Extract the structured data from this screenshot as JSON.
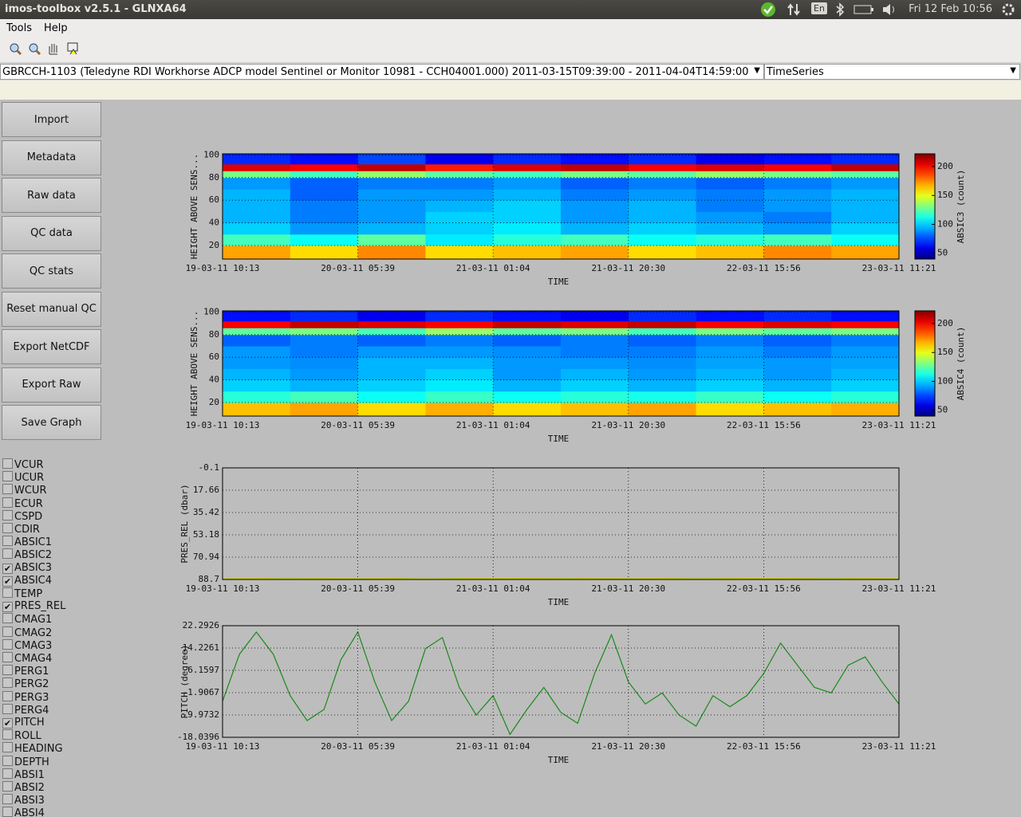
{
  "window": {
    "title": "imos-toolbox v2.5.1 - GLNXA64",
    "keyboard": "En",
    "clock": "Fri 12 Feb 10:56"
  },
  "menu": [
    "Tools",
    "Help"
  ],
  "dataset_select": "GBRCCH-1103 (Teledyne RDI Workhorse ADCP model Sentinel or Monitor 10981 - CCH04001.000) 2011-03-15T09:39:00 - 2011-04-04T14:59:00",
  "mode_select": "TimeSeries",
  "buttons": [
    "Import",
    "Metadata",
    "Raw data",
    "QC data",
    "QC stats",
    "Reset manual QC",
    "Export NetCDF",
    "Export Raw",
    "Save Graph"
  ],
  "variables": [
    {
      "name": "VCUR",
      "checked": false
    },
    {
      "name": "UCUR",
      "checked": false
    },
    {
      "name": "WCUR",
      "checked": false
    },
    {
      "name": "ECUR",
      "checked": false
    },
    {
      "name": "CSPD",
      "checked": false
    },
    {
      "name": "CDIR",
      "checked": false
    },
    {
      "name": "ABSIC1",
      "checked": false
    },
    {
      "name": "ABSIC2",
      "checked": false
    },
    {
      "name": "ABSIC3",
      "checked": true
    },
    {
      "name": "ABSIC4",
      "checked": true
    },
    {
      "name": "TEMP",
      "checked": false
    },
    {
      "name": "PRES_REL",
      "checked": true
    },
    {
      "name": "CMAG1",
      "checked": false
    },
    {
      "name": "CMAG2",
      "checked": false
    },
    {
      "name": "CMAG3",
      "checked": false
    },
    {
      "name": "CMAG4",
      "checked": false
    },
    {
      "name": "PERG1",
      "checked": false
    },
    {
      "name": "PERG2",
      "checked": false
    },
    {
      "name": "PERG3",
      "checked": false
    },
    {
      "name": "PERG4",
      "checked": false
    },
    {
      "name": "PITCH",
      "checked": true
    },
    {
      "name": "ROLL",
      "checked": false
    },
    {
      "name": "HEADING",
      "checked": false
    },
    {
      "name": "DEPTH",
      "checked": false
    },
    {
      "name": "ABSI1",
      "checked": false
    },
    {
      "name": "ABSI2",
      "checked": false
    },
    {
      "name": "ABSI3",
      "checked": false
    },
    {
      "name": "ABSI4",
      "checked": false
    }
  ],
  "chart_data": [
    {
      "type": "heatmap",
      "ylabel": "HEIGHT ABOVE SENS...",
      "xlabel": "TIME",
      "colorbar_label": "ABSIC3 (count)",
      "xlim": [
        0,
        5
      ],
      "xticks": [
        {
          "value": 0,
          "label": "19-03-11 10:13"
        },
        {
          "value": 1,
          "label": "20-03-11 05:39"
        },
        {
          "value": 2,
          "label": "21-03-11 01:04"
        },
        {
          "value": 3,
          "label": "21-03-11 20:30"
        },
        {
          "value": 4,
          "label": "22-03-11 15:56"
        },
        {
          "value": 5,
          "label": "23-03-11 11:21"
        }
      ],
      "ylim": [
        8,
        101
      ],
      "yticks": [
        20,
        40,
        60,
        80,
        100
      ],
      "grid": true,
      "clim": [
        40,
        222
      ],
      "cticks": [
        50,
        100,
        150,
        200
      ],
      "x_edges": [
        0,
        0.5,
        1,
        1.5,
        2,
        2.5,
        3,
        3.5,
        4,
        4.5,
        5
      ],
      "y_edges": [
        8,
        20,
        30,
        40,
        50,
        60,
        70,
        80,
        86,
        92,
        101
      ],
      "z": [
        [
          170,
          160,
          175,
          160,
          165,
          170,
          160,
          165,
          175,
          170
        ],
        [
          120,
          110,
          125,
          105,
          115,
          120,
          110,
          115,
          120,
          110
        ],
        [
          100,
          90,
          95,
          100,
          105,
          95,
          100,
          95,
          90,
          100
        ],
        [
          95,
          85,
          90,
          100,
          100,
          90,
          95,
          90,
          85,
          95
        ],
        [
          95,
          85,
          90,
          95,
          100,
          90,
          95,
          85,
          90,
          95
        ],
        [
          95,
          80,
          90,
          90,
          95,
          85,
          90,
          85,
          90,
          95
        ],
        [
          90,
          80,
          85,
          85,
          90,
          80,
          85,
          80,
          85,
          90
        ],
        [
          130,
          120,
          135,
          125,
          120,
          130,
          125,
          135,
          130,
          125
        ],
        [
          205,
          200,
          210,
          195,
          205,
          210,
          200,
          205,
          200,
          210
        ],
        [
          70,
          65,
          75,
          60,
          70,
          65,
          70,
          60,
          65,
          70
        ]
      ]
    },
    {
      "type": "heatmap",
      "ylabel": "HEIGHT ABOVE SENS...",
      "xlabel": "TIME",
      "colorbar_label": "ABSIC4 (count)",
      "xlim": [
        0,
        5
      ],
      "xticks": [
        {
          "value": 0,
          "label": "19-03-11 10:13"
        },
        {
          "value": 1,
          "label": "20-03-11 05:39"
        },
        {
          "value": 2,
          "label": "21-03-11 01:04"
        },
        {
          "value": 3,
          "label": "21-03-11 20:30"
        },
        {
          "value": 4,
          "label": "22-03-11 15:56"
        },
        {
          "value": 5,
          "label": "23-03-11 11:21"
        }
      ],
      "ylim": [
        8,
        101
      ],
      "yticks": [
        20,
        40,
        60,
        80,
        100
      ],
      "grid": true,
      "clim": [
        40,
        222
      ],
      "cticks": [
        50,
        100,
        150,
        200
      ],
      "x_edges": [
        0,
        0.5,
        1,
        1.5,
        2,
        2.5,
        3,
        3.5,
        4,
        4.5,
        5
      ],
      "y_edges": [
        8,
        20,
        30,
        40,
        50,
        60,
        70,
        80,
        86,
        92,
        101
      ],
      "z": [
        [
          165,
          170,
          160,
          168,
          160,
          165,
          170,
          160,
          165,
          168
        ],
        [
          115,
          120,
          110,
          118,
          110,
          115,
          112,
          118,
          110,
          115
        ],
        [
          100,
          95,
          100,
          105,
          95,
          100,
          95,
          100,
          95,
          100
        ],
        [
          95,
          90,
          95,
          100,
          90,
          95,
          90,
          95,
          90,
          95
        ],
        [
          90,
          88,
          95,
          95,
          90,
          90,
          88,
          92,
          90,
          92
        ],
        [
          90,
          85,
          90,
          90,
          88,
          85,
          85,
          90,
          85,
          90
        ],
        [
          80,
          85,
          80,
          85,
          80,
          85,
          80,
          85,
          80,
          85
        ],
        [
          125,
          130,
          120,
          135,
          125,
          130,
          120,
          130,
          125,
          130
        ],
        [
          200,
          210,
          205,
          200,
          210,
          205,
          210,
          200,
          205,
          200
        ],
        [
          65,
          70,
          60,
          70,
          65,
          60,
          70,
          65,
          70,
          65
        ]
      ]
    },
    {
      "type": "line",
      "ylabel": "PRES_REL (dbar)",
      "xlabel": "TIME",
      "color": "#c8c800",
      "xlim": [
        0,
        5
      ],
      "xticks": [
        {
          "value": 0,
          "label": "19-03-11 10:13"
        },
        {
          "value": 1,
          "label": "20-03-11 05:39"
        },
        {
          "value": 2,
          "label": "21-03-11 01:04"
        },
        {
          "value": 3,
          "label": "21-03-11 20:30"
        },
        {
          "value": 4,
          "label": "22-03-11 15:56"
        },
        {
          "value": 5,
          "label": "23-03-11 11:21"
        }
      ],
      "ylim": [
        -0.1,
        88.7
      ],
      "y_reversed": true,
      "yticks": [
        -0.1,
        17.66,
        35.42,
        53.18,
        70.94,
        88.7
      ],
      "grid": true,
      "x": [
        0,
        0.5,
        1,
        1.5,
        2,
        2.5,
        3,
        3.5,
        4,
        4.5,
        5
      ],
      "values": [
        88.2,
        87.5,
        88.1,
        87.4,
        88.0,
        87.6,
        88.1,
        87.5,
        88.0,
        87.5,
        88.1
      ]
    },
    {
      "type": "line",
      "ylabel": "PITCH (degree)",
      "xlabel": "TIME",
      "color": "#1a8a1a",
      "xlim": [
        0,
        5
      ],
      "xticks": [
        {
          "value": 0,
          "label": "19-03-11 10:13"
        },
        {
          "value": 1,
          "label": "20-03-11 05:39"
        },
        {
          "value": 2,
          "label": "21-03-11 01:04"
        },
        {
          "value": 3,
          "label": "21-03-11 20:30"
        },
        {
          "value": 4,
          "label": "22-03-11 15:56"
        },
        {
          "value": 5,
          "label": "23-03-11 11:21"
        }
      ],
      "ylim": [
        -18.0396,
        22.2926
      ],
      "y_reversed": false,
      "yticks": [
        -18.0396,
        -9.9732,
        -1.9067,
        6.1597,
        14.2261,
        22.2926
      ],
      "grid": true,
      "x": [
        0,
        0.125,
        0.25,
        0.375,
        0.5,
        0.625,
        0.75,
        0.875,
        1,
        1.125,
        1.25,
        1.375,
        1.5,
        1.625,
        1.75,
        1.875,
        2,
        2.125,
        2.25,
        2.375,
        2.5,
        2.625,
        2.75,
        2.875,
        3,
        3.125,
        3.25,
        3.375,
        3.5,
        3.625,
        3.75,
        3.875,
        4,
        4.125,
        4.25,
        4.375,
        4.5,
        4.625,
        4.75,
        4.875,
        5
      ],
      "values": [
        -5,
        12,
        20,
        12,
        -3,
        -12,
        -8,
        10,
        20,
        2,
        -12,
        -5,
        14,
        18,
        0,
        -10,
        -3,
        -17,
        -8,
        0,
        -9,
        -13,
        5,
        19,
        2,
        -6,
        -2,
        -10,
        -14,
        -3,
        -7,
        -3,
        5,
        16,
        8,
        0,
        -2,
        8,
        11,
        2,
        -6
      ]
    }
  ]
}
